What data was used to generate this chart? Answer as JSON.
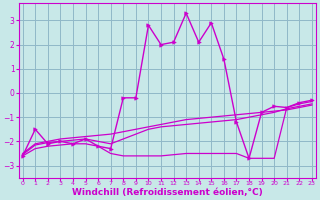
{
  "background_color": "#c8e8e8",
  "grid_color": "#90b8c8",
  "line_color": "#cc00cc",
  "xlabel": "Windchill (Refroidissement éolien,°C)",
  "xlabel_fontsize": 6.5,
  "yticks": [
    -3,
    -2,
    -1,
    0,
    1,
    2,
    3
  ],
  "xticks": [
    0,
    1,
    2,
    3,
    4,
    5,
    6,
    7,
    8,
    9,
    10,
    11,
    12,
    13,
    14,
    15,
    16,
    17,
    18,
    19,
    20,
    21,
    22,
    23
  ],
  "xlim": [
    -0.3,
    23.3
  ],
  "ylim": [
    -3.5,
    3.7
  ],
  "series": [
    {
      "x": [
        0,
        1,
        2,
        3,
        4,
        5,
        6,
        7,
        8,
        9,
        10,
        11,
        12,
        13,
        14,
        15,
        16,
        17,
        18,
        19,
        20,
        21,
        22,
        23
      ],
      "y": [
        -2.6,
        -1.5,
        -2.1,
        -2.0,
        -2.1,
        -1.9,
        -2.2,
        -2.3,
        -0.2,
        -0.2,
        2.8,
        2.0,
        2.1,
        3.3,
        2.1,
        2.9,
        1.4,
        -1.2,
        -2.7,
        -0.8,
        -0.55,
        -0.6,
        -0.4,
        -0.3
      ],
      "marker": true,
      "linewidth": 1.0
    },
    {
      "x": [
        0,
        1,
        2,
        3,
        4,
        5,
        6,
        7,
        8,
        9,
        10,
        11,
        12,
        13,
        14,
        15,
        16,
        17,
        18,
        19,
        20,
        21,
        22,
        23
      ],
      "y": [
        -2.5,
        -2.1,
        -2.0,
        -1.9,
        -1.85,
        -1.8,
        -1.75,
        -1.7,
        -1.6,
        -1.5,
        -1.4,
        -1.3,
        -1.2,
        -1.1,
        -1.05,
        -1.0,
        -0.95,
        -0.9,
        -0.85,
        -0.8,
        -0.75,
        -0.7,
        -0.6,
        -0.5
      ],
      "marker": false,
      "linewidth": 0.9
    },
    {
      "x": [
        0,
        1,
        2,
        3,
        4,
        5,
        6,
        7,
        8,
        9,
        10,
        11,
        12,
        13,
        14,
        15,
        16,
        17,
        18,
        19,
        20,
        21,
        22,
        23
      ],
      "y": [
        -2.6,
        -2.3,
        -2.2,
        -2.15,
        -2.1,
        -2.1,
        -2.2,
        -2.5,
        -2.6,
        -2.6,
        -2.6,
        -2.6,
        -2.55,
        -2.5,
        -2.5,
        -2.5,
        -2.5,
        -2.5,
        -2.7,
        -2.7,
        -2.7,
        -0.6,
        -0.45,
        -0.35
      ],
      "marker": false,
      "linewidth": 0.9
    },
    {
      "x": [
        0,
        1,
        2,
        3,
        4,
        5,
        6,
        7,
        8,
        9,
        10,
        11,
        12,
        13,
        14,
        15,
        16,
        17,
        18,
        19,
        20,
        21,
        22,
        23
      ],
      "y": [
        -2.55,
        -2.15,
        -2.05,
        -2.0,
        -1.95,
        -1.9,
        -2.0,
        -2.1,
        -1.9,
        -1.7,
        -1.5,
        -1.4,
        -1.35,
        -1.3,
        -1.25,
        -1.2,
        -1.15,
        -1.1,
        -1.0,
        -0.9,
        -0.8,
        -0.65,
        -0.55,
        -0.45
      ],
      "marker": false,
      "linewidth": 0.9
    }
  ]
}
